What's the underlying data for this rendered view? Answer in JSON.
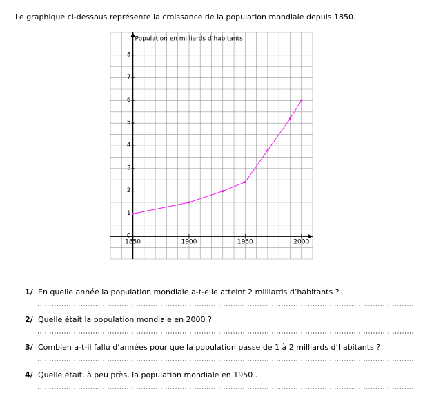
{
  "intro": "Le graphique ci-dessous représente la croissance de la population mondiale depuis 1850.",
  "chart_data": {
    "type": "line",
    "y_label": "Population en milliards d’habitants",
    "x": [
      1850,
      1900,
      1930,
      1950,
      1970,
      1990,
      2000
    ],
    "series": [
      {
        "color": "#ee22ee",
        "values": [
          1,
          1.5,
          2,
          2.4,
          3.8,
          5.2,
          6
        ]
      }
    ],
    "xlim": [
      1830,
      2010
    ],
    "ylim": [
      -1,
      9
    ],
    "xticks": [
      1850,
      1900,
      1950,
      2000
    ],
    "yticks": [
      0,
      1,
      2,
      3,
      4,
      5,
      6,
      7,
      8
    ],
    "grid": true
  },
  "questions": [
    {
      "number": "1/",
      "text": "En quelle année la population mondiale a-t-elle atteint 2 milliards d’habitants ?"
    },
    {
      "number": "2/",
      "text": "Quelle était la population mondiale en 2000 ?"
    },
    {
      "number": "3/",
      "text": "Combien a-t-il fallu d’années pour que la population passe de 1 à 2 milliards d’habitants ?"
    },
    {
      "number": "4/",
      "text": "Quelle était, à peu près, la population mondiale en 1950 ."
    }
  ]
}
